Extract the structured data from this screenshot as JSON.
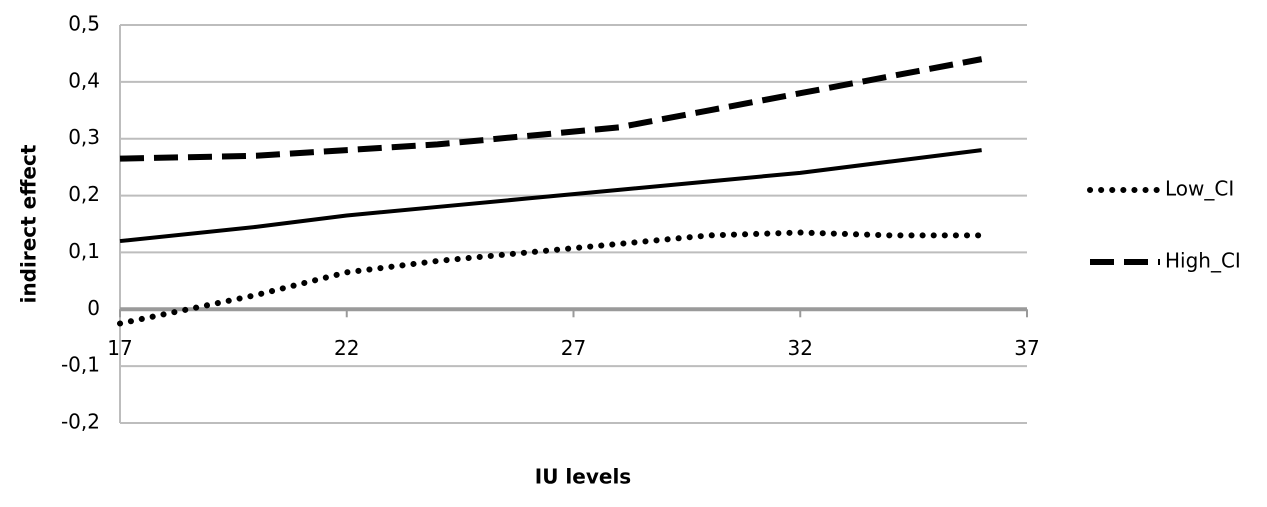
{
  "chart_data": {
    "type": "line",
    "x_label": "IU levels",
    "y_label": "indirect effect",
    "x": [
      17,
      20,
      22,
      24,
      26,
      28,
      30,
      32,
      34,
      36
    ],
    "series": [
      {
        "color": "#000000",
        "dash": "solid",
        "values": [
          0.12,
          0.145,
          0.165,
          0.18,
          0.195,
          0.21,
          0.225,
          0.24,
          0.26,
          0.28
        ]
      },
      {
        "name": "Low_CI",
        "color": "#000000",
        "dash": "dotted",
        "values": [
          -0.025,
          0.025,
          0.065,
          0.085,
          0.1,
          0.115,
          0.13,
          0.135,
          0.13,
          0.13
        ]
      },
      {
        "name": "High_CI",
        "color": "#000000",
        "dash": "dashed",
        "values": [
          0.265,
          0.27,
          0.28,
          0.29,
          0.305,
          0.32,
          0.35,
          0.38,
          0.41,
          0.44
        ]
      }
    ],
    "xlim": [
      17,
      37
    ],
    "xticks": [
      17,
      22,
      27,
      32,
      37
    ],
    "ylim": [
      -0.2,
      0.5
    ],
    "yticks": [
      {
        "value": -0.2,
        "label": "-0,2"
      },
      {
        "value": -0.1,
        "label": "-0,1"
      },
      0,
      {
        "value": 0.1,
        "label": "0,1"
      },
      {
        "value": 0.2,
        "label": "0,2"
      },
      {
        "value": 0.3,
        "label": "0,3"
      },
      {
        "value": 0.4,
        "label": "0,4"
      },
      {
        "value": 0.5,
        "label": "0,5"
      }
    ],
    "grid": true,
    "legend": "right"
  }
}
